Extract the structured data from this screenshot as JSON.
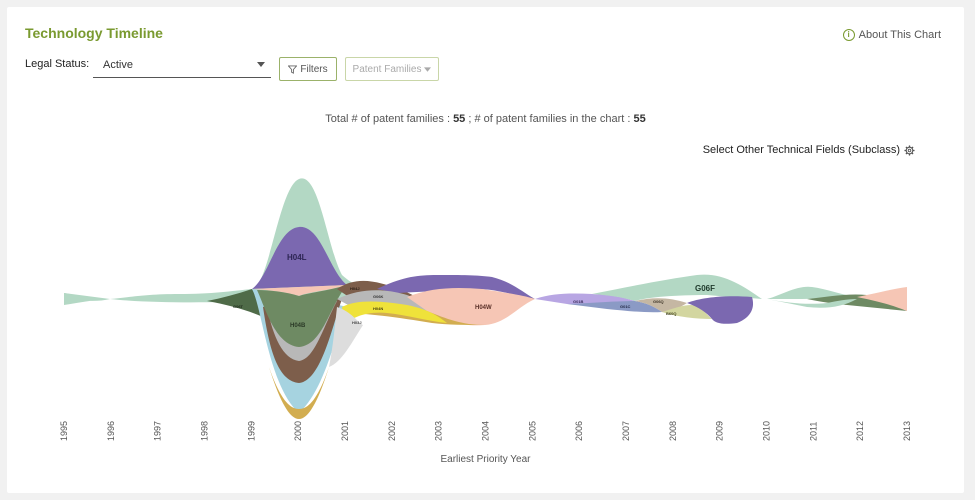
{
  "header": {
    "title": "Technology Timeline",
    "about_label": "About This Chart"
  },
  "controls": {
    "legal_status_label": "Legal Status:",
    "legal_status_value": "Active",
    "filters_label": "Filters",
    "patent_families_label": "Patent Families"
  },
  "summary": {
    "prefix": "Total # of patent families : ",
    "total": "55",
    "middle": " ; # of patent families in the chart : ",
    "in_chart": "55"
  },
  "select_other_label": "Select Other Technical Fields (Subclass)",
  "chart_data": {
    "type": "area",
    "subtype": "streamgraph",
    "xlabel": "Earliest Priority Year",
    "x": [
      "1995",
      "1996",
      "1997",
      "1998",
      "1999",
      "2000",
      "2001",
      "2002",
      "2003",
      "2004",
      "2005",
      "2006",
      "2007",
      "2008",
      "2009",
      "2010",
      "2011",
      "2012",
      "2013"
    ],
    "series": [
      {
        "name": "H04L",
        "color": "#7b68b0"
      },
      {
        "name": "H04B",
        "color": "#6e8a63"
      },
      {
        "name": "H04J",
        "color": "#7d5e4b"
      },
      {
        "name": "G06K",
        "color": "#a8a8a8"
      },
      {
        "name": "H04N",
        "color": "#efe23a"
      },
      {
        "name": "H03J",
        "color": "#dddddd"
      },
      {
        "name": "H04W",
        "color": "#f6c6b5"
      },
      {
        "name": "G01B",
        "color": "#b8a6e3"
      },
      {
        "name": "G01C",
        "color": "#8b9ac5"
      },
      {
        "name": "G06Q",
        "color": "#c5b7a3"
      },
      {
        "name": "B60Q",
        "color": "#d3d6a0"
      },
      {
        "name": "G06F",
        "color": "#b3d8c4"
      },
      {
        "name": "G06T",
        "color": "#4f6b48"
      }
    ],
    "colors": {
      "mint": "#b3d8c4",
      "purple": "#7b68b0",
      "green": "#6e8a63",
      "brown": "#7d5e4b",
      "lightblue": "#a6d3e0",
      "gold": "#d2ad50",
      "peach": "#f6c6b5",
      "yellow": "#efe23a",
      "lavender": "#b8a6e3"
    }
  }
}
